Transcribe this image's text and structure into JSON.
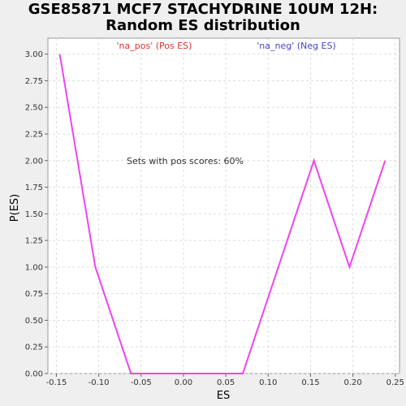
{
  "chart_data": {
    "type": "line",
    "title_lines": [
      "GSE85871 MCF7 STACHYDRINE 10UM 12H:",
      "Random ES distribution"
    ],
    "xlabel": "ES",
    "ylabel": "P(ES)",
    "xlim": [
      -0.16,
      0.255
    ],
    "ylim": [
      0,
      3.15
    ],
    "x_ticks": [
      -0.15,
      -0.1,
      -0.05,
      0.0,
      0.05,
      0.1,
      0.15,
      0.2,
      0.25
    ],
    "x_tick_labels": [
      "-0.15",
      "-0.10",
      "-0.05",
      "0.00",
      "0.05",
      "0.10",
      "0.15",
      "0.20",
      "0.25"
    ],
    "y_ticks": [
      0,
      0.25,
      0.5,
      0.75,
      1.0,
      1.25,
      1.5,
      1.75,
      2.0,
      2.25,
      2.5,
      2.75,
      3.0
    ],
    "y_tick_labels": [
      "0.00",
      "0.25",
      "0.50",
      "0.75",
      "1.00",
      "1.25",
      "1.50",
      "1.75",
      "2.00",
      "2.25",
      "2.50",
      "2.75",
      "3.00"
    ],
    "grid": true,
    "series": [
      {
        "color": "#ee44ee",
        "x": [
          -0.146,
          -0.104,
          -0.062,
          0.07,
          0.154,
          0.196,
          0.238
        ],
        "y": [
          3.0,
          1.0,
          0.0,
          0.0,
          2.0,
          1.0,
          2.0
        ]
      }
    ],
    "annotations": {
      "pos_label": "'na_pos' (Pos ES)",
      "neg_label": "'na_neg' (Neg ES)",
      "pos_color": "#dd3333",
      "neg_color": "#4444cc",
      "score_text": "Sets with pos scores: 60%"
    }
  }
}
